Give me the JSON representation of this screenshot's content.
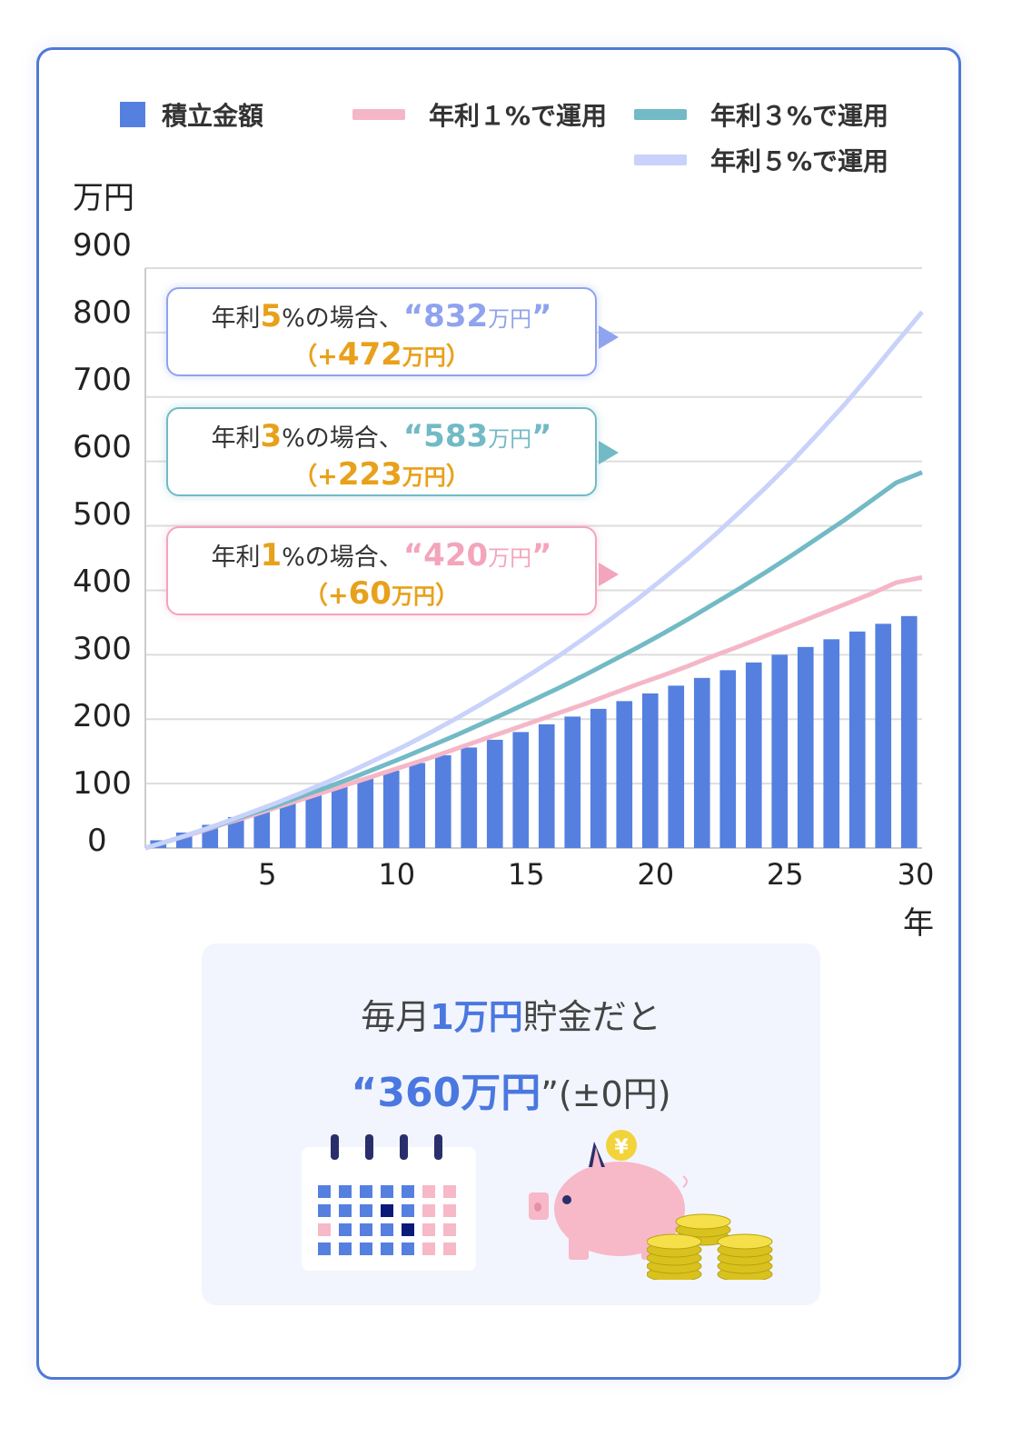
{
  "legend": {
    "savings": {
      "label": "積立金額",
      "color": "#5580e0"
    },
    "r1": {
      "label": "年利１%で運用",
      "color": "#f5b7c7"
    },
    "r3": {
      "label": "年利３%で運用",
      "color": "#72bac5"
    },
    "r5": {
      "label": "年利５%で運用",
      "color": "#c8d2fb"
    }
  },
  "axis": {
    "y_unit": "万円",
    "x_unit": "年"
  },
  "callouts": [
    {
      "pre": "年利",
      "rate": "5",
      "mid": "%の場合、",
      "amount_open": "“",
      "amount_num": "832",
      "amount_unit": "万円",
      "amount_close": "”",
      "diff_open": "（+",
      "diff_num": "472",
      "diff_unit": "万円",
      "diff_close": "）",
      "color": "#8fa3ee"
    },
    {
      "pre": "年利",
      "rate": "3",
      "mid": "%の場合、",
      "amount_open": "“",
      "amount_num": "583",
      "amount_unit": "万円",
      "amount_close": "”",
      "diff_open": "（+",
      "diff_num": "223",
      "diff_unit": "万円",
      "diff_close": "）",
      "color": "#72bac5"
    },
    {
      "pre": "年利",
      "rate": "1",
      "mid": "%の場合、",
      "amount_open": "“",
      "amount_num": "420",
      "amount_unit": "万円",
      "amount_close": "”",
      "diff_open": "（+",
      "diff_num": "60",
      "diff_unit": "万円",
      "diff_close": "）",
      "color": "#f3a5bb"
    }
  ],
  "summary": {
    "line1_pre": "毎月",
    "line1_hl": "1万円",
    "line1_post": "貯金だと",
    "line2_open": "“",
    "line2_hl": "360万円",
    "line2_close": "”(±0円)",
    "yen_symbol": "¥"
  },
  "icons": {
    "calendar": "calendar-icon",
    "piggy": "piggy-bank-icon",
    "coins": "coin-stack-icon"
  },
  "chart_data": {
    "type": "bar",
    "x": [
      1,
      2,
      3,
      4,
      5,
      6,
      7,
      8,
      9,
      10,
      11,
      12,
      13,
      14,
      15,
      16,
      17,
      18,
      19,
      20,
      21,
      22,
      23,
      24,
      25,
      26,
      27,
      28,
      29,
      30
    ],
    "xticks": [
      5,
      10,
      15,
      20,
      25,
      30
    ],
    "yticks": [
      0,
      100,
      200,
      300,
      400,
      500,
      600,
      700,
      800,
      900
    ],
    "ylim": [
      0,
      900
    ],
    "xlim": [
      0,
      30
    ],
    "series": [
      {
        "name": "積立金額",
        "type": "bar",
        "color": "#5580e0",
        "values": [
          12,
          24,
          36,
          48,
          60,
          72,
          84,
          96,
          108,
          120,
          132,
          144,
          156,
          168,
          180,
          192,
          204,
          216,
          228,
          240,
          252,
          264,
          276,
          288,
          300,
          312,
          324,
          336,
          348,
          360
        ]
      },
      {
        "name": "年利１%で運用",
        "type": "line",
        "color": "#f5b7c7",
        "values": [
          12,
          24,
          37,
          49,
          62,
          75,
          88,
          101,
          114,
          127,
          140,
          154,
          168,
          182,
          196,
          210,
          224,
          239,
          254,
          268,
          283,
          299,
          314,
          330,
          346,
          362,
          378,
          394,
          412,
          420
        ]
      },
      {
        "name": "年利３%で運用",
        "type": "line",
        "color": "#72bac5",
        "values": [
          12,
          25,
          38,
          52,
          65,
          80,
          94,
          109,
          125,
          141,
          158,
          175,
          193,
          211,
          230,
          249,
          269,
          290,
          311,
          333,
          356,
          380,
          404,
          429,
          455,
          482,
          509,
          538,
          567,
          583
        ]
      },
      {
        "name": "年利５%で運用",
        "type": "line",
        "color": "#c8d2fb",
        "values": [
          12,
          25,
          39,
          54,
          69,
          85,
          102,
          120,
          139,
          158,
          179,
          201,
          224,
          248,
          273,
          299,
          327,
          356,
          386,
          418,
          451,
          486,
          523,
          561,
          601,
          644,
          688,
          735,
          784,
          832
        ]
      }
    ]
  }
}
